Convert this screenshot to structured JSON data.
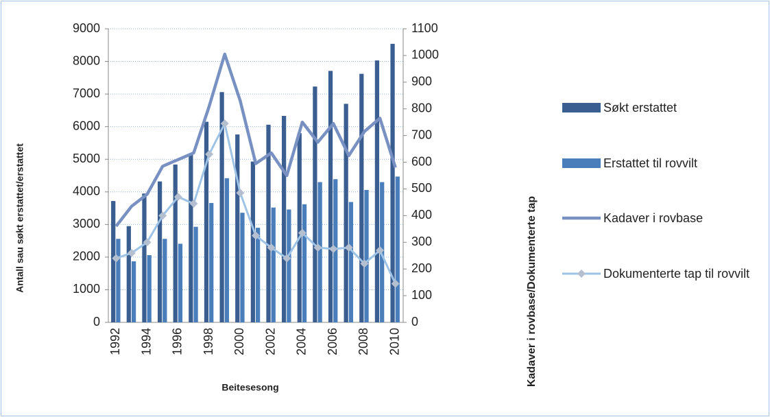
{
  "chart_data": {
    "type": "bar-line",
    "xlabel": "Beitesesong",
    "ylabel": "Antall sau søkt erstattet/erstattet",
    "y2label": "Kadaver i rovbase/Dokumenterte tap",
    "categories": [
      "1992",
      null,
      "1994",
      null,
      "1996",
      null,
      "1998",
      null,
      "2000",
      null,
      "2002",
      null,
      "2004",
      null,
      "2006",
      null,
      "2008",
      null,
      "2010"
    ],
    "series": [
      {
        "name": "Søkt erstattet",
        "kind": "bar",
        "color": "#3b5e91",
        "values": [
          3720,
          2950,
          3950,
          4320,
          4840,
          5150,
          6150,
          7060,
          5760,
          4930,
          6060,
          6330,
          5800,
          7230,
          7710,
          6700,
          7620,
          8030,
          8540
        ]
      },
      {
        "name": "Erstattet til rovvilt",
        "kind": "bar",
        "color": "#4a7ebb",
        "values": [
          2560,
          1870,
          2060,
          2560,
          2410,
          2930,
          3660,
          4420,
          3360,
          2900,
          3520,
          3460,
          3620,
          4300,
          4390,
          3690,
          4060,
          4300,
          4470
        ]
      },
      {
        "name": "Kadaver i rovbase",
        "kind": "line",
        "axis": "y2",
        "color": "#7891c2",
        "values": [
          360,
          435,
          480,
          585,
          610,
          635,
          810,
          1005,
          830,
          595,
          635,
          550,
          750,
          675,
          745,
          625,
          715,
          765,
          580
        ]
      },
      {
        "name": "Dokumenterte tap til rovvilt",
        "kind": "line",
        "axis": "y2",
        "color": "#9dc3e6",
        "marker_color": "#b4bfd0",
        "values": [
          240,
          260,
          300,
          400,
          470,
          445,
          630,
          745,
          485,
          325,
          280,
          240,
          335,
          280,
          275,
          280,
          220,
          270,
          145
        ]
      }
    ],
    "ylim": [
      0,
      9000
    ],
    "yticks": [
      0,
      1000,
      2000,
      3000,
      4000,
      5000,
      6000,
      7000,
      8000,
      9000
    ],
    "y2lim": [
      0,
      1100
    ],
    "y2ticks": [
      0,
      100,
      200,
      300,
      400,
      500,
      600,
      700,
      800,
      900,
      1000,
      1100
    ],
    "grid": true,
    "legend": "right"
  }
}
